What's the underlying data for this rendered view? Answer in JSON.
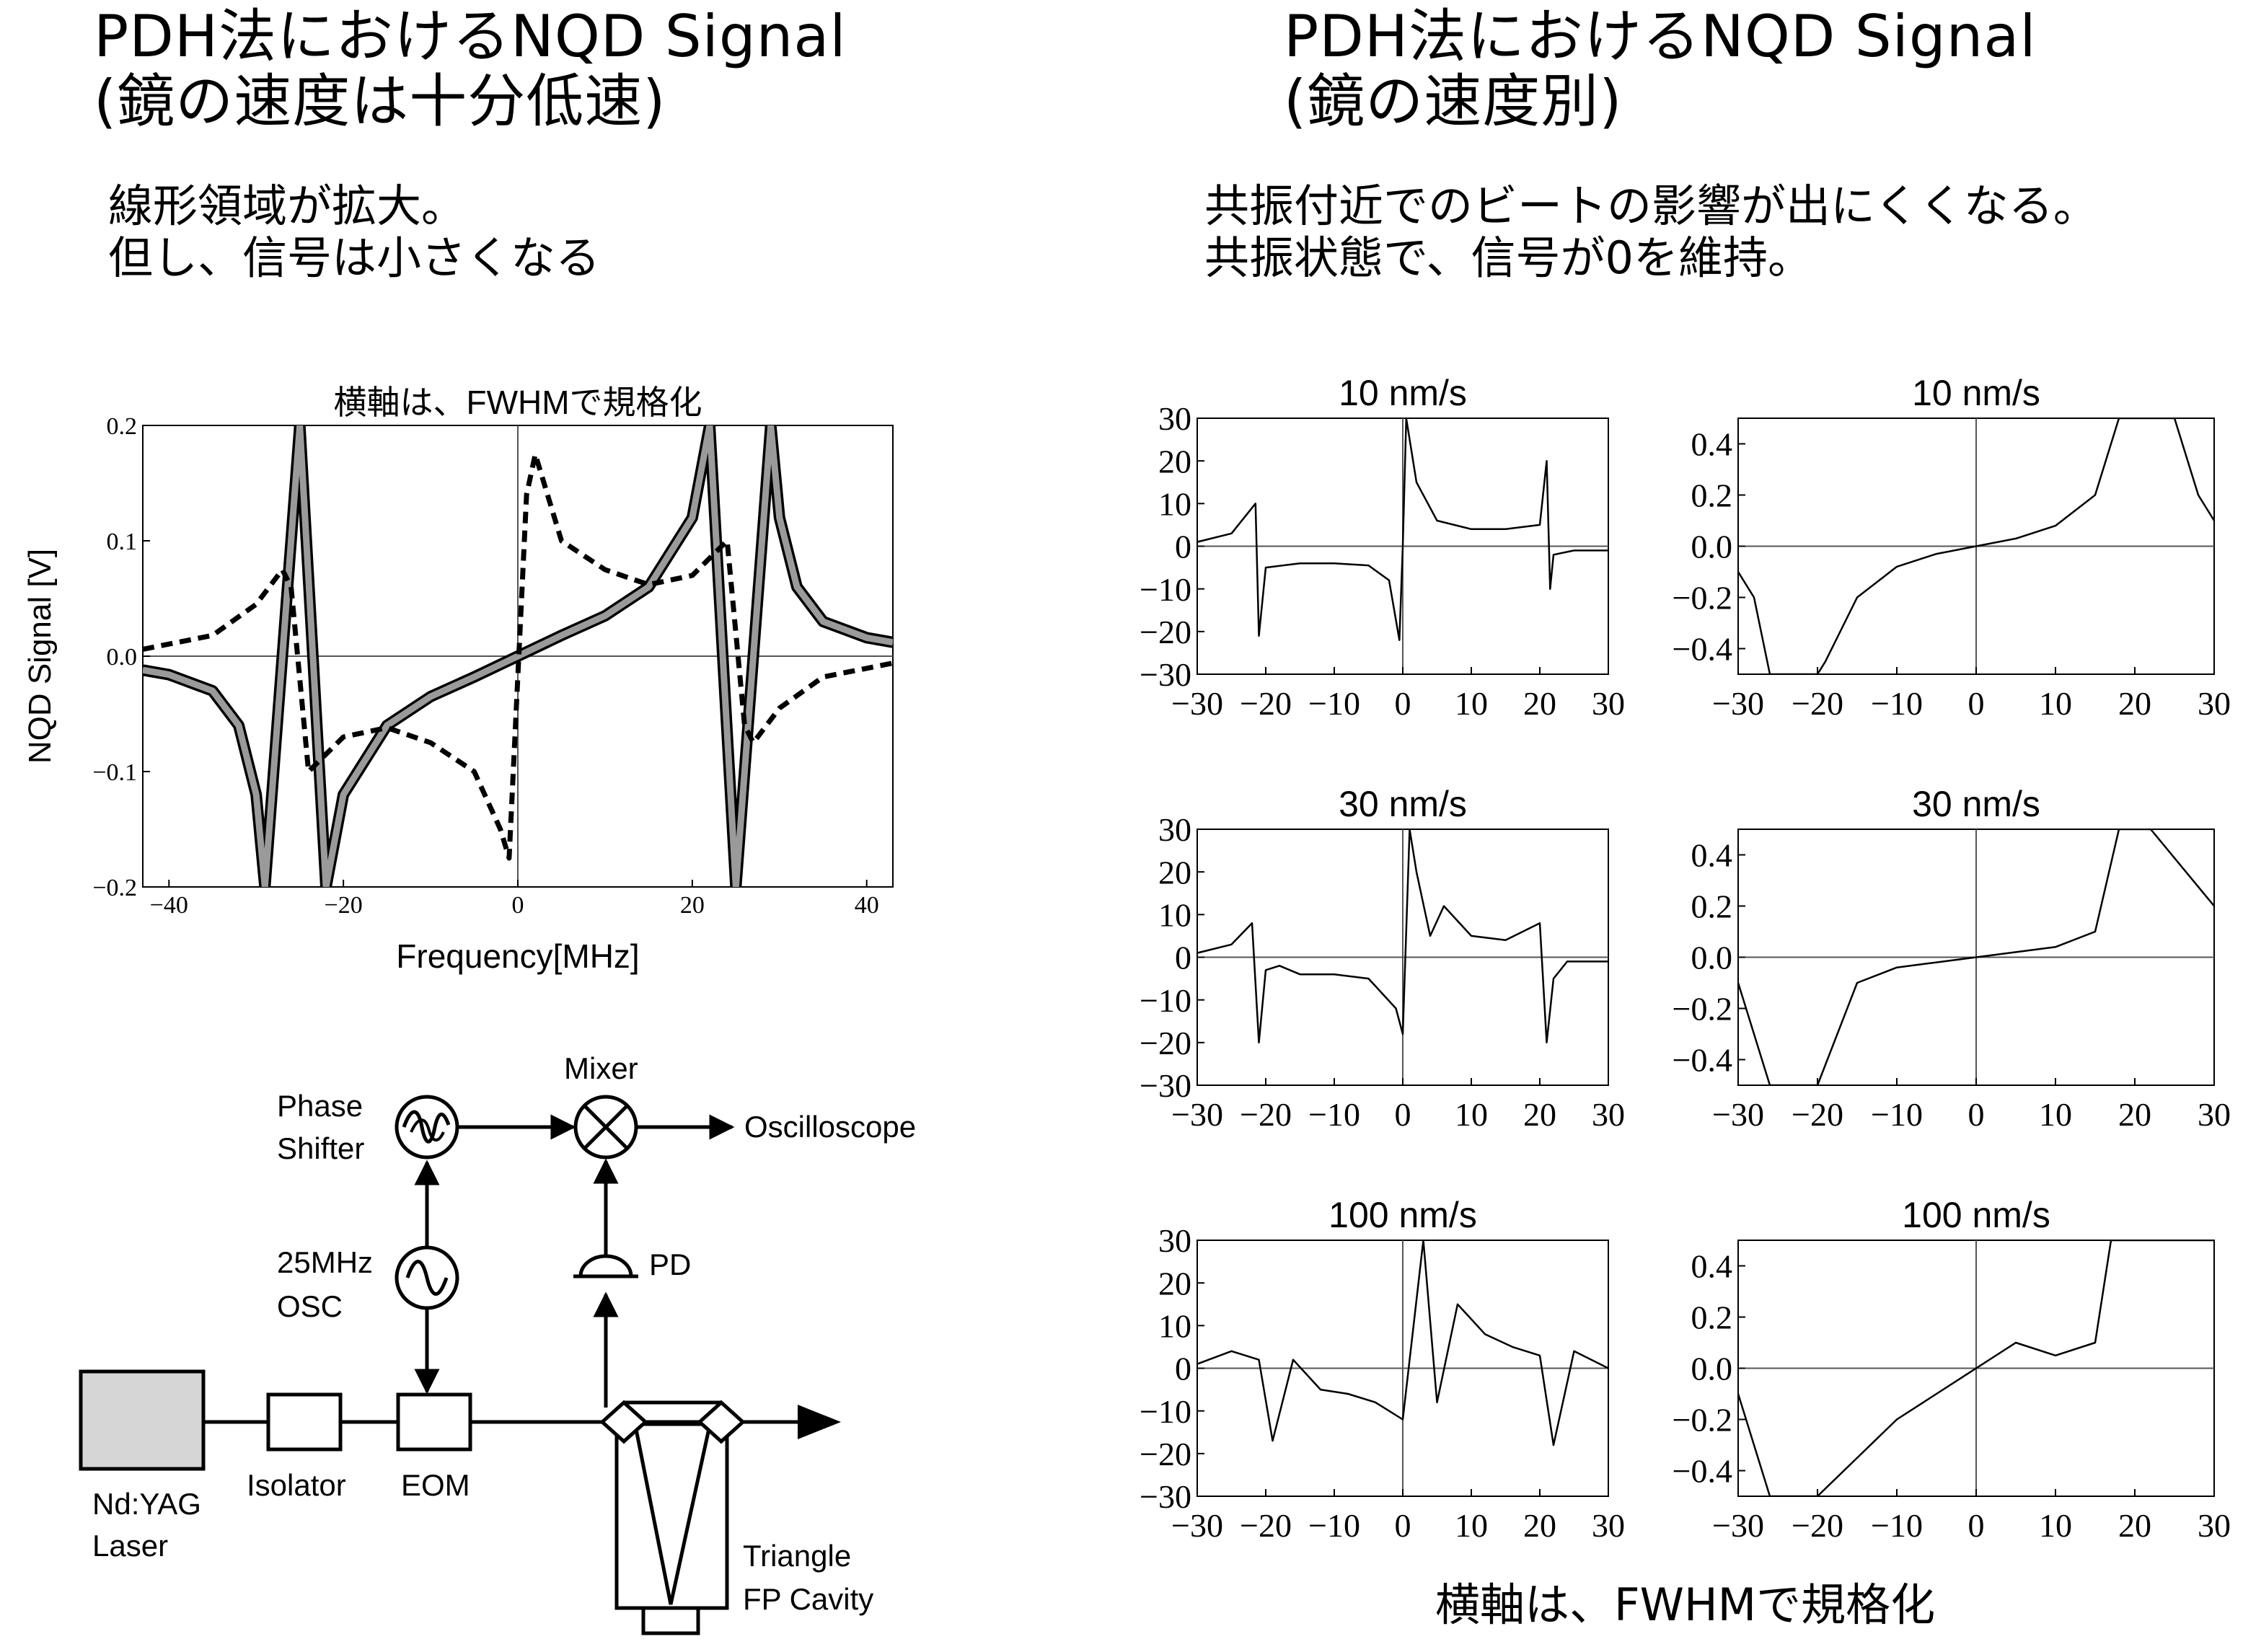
{
  "left": {
    "title_line1": "PDH法におけるNQD Signal",
    "title_line2": "(鏡の速度は十分低速)",
    "note_line1": "線形領域が拡大。",
    "note_line2": "但し、信号は小さくなる"
  },
  "right": {
    "title_line1": "PDH法におけるNQD Signal",
    "title_line2": "(鏡の速度別)",
    "note_line1": "共振付近でのビートの影響が出にくくなる。",
    "note_line2": "共振状態で、信号が0を維持。",
    "footer": "横軸は、FWHMで規格化"
  },
  "diagram": {
    "labels": {
      "phase_shifter_1": "Phase",
      "phase_shifter_2": "Shifter",
      "mixer": "Mixer",
      "oscilloscope": "Oscilloscope",
      "osc_1": "25MHz",
      "osc_2": "OSC",
      "pd": "PD",
      "laser_1": "Nd:YAG",
      "laser_2": "Laser",
      "isolator": "Isolator",
      "eom": "EOM",
      "cavity_1": "Triangle",
      "cavity_2": "FP Cavity"
    }
  },
  "chart_data": [
    {
      "type": "line",
      "title": "横軸は、FWHMで規格化",
      "xlabel": "Frequency[MHz]",
      "ylabel": "NQD Signal [V]",
      "xlim": [
        -43,
        43
      ],
      "ylim": [
        -0.2,
        0.2
      ],
      "xticks": [
        "−40",
        "−20",
        "0",
        "20",
        "40"
      ],
      "yticks": [
        "0.2",
        "0.1",
        "0.0",
        "−0.1",
        "−0.2"
      ],
      "series": [
        {
          "style": "solid thick gray-black",
          "x": [
            -43,
            -40,
            -35,
            -32,
            -30,
            -29,
            -25,
            -22,
            -20,
            -15,
            -10,
            -5,
            0,
            5,
            10,
            15,
            20,
            22,
            25,
            29,
            30,
            32,
            35,
            40,
            43
          ],
          "y": [
            -0.012,
            -0.016,
            -0.03,
            -0.06,
            -0.12,
            -0.2,
            0.2,
            -0.2,
            -0.12,
            -0.06,
            -0.035,
            -0.018,
            0.0,
            0.018,
            0.035,
            0.06,
            0.12,
            0.2,
            -0.2,
            0.2,
            0.12,
            0.06,
            0.03,
            0.016,
            0.012
          ]
        },
        {
          "style": "dashed",
          "x": [
            -43,
            -35,
            -30,
            -27,
            -26,
            -25,
            -24,
            -20,
            -15,
            -10,
            -5,
            -2,
            -1,
            1,
            2,
            5,
            10,
            15,
            20,
            24,
            25,
            26,
            27,
            30,
            35,
            43
          ],
          "y": [
            0.006,
            0.018,
            0.045,
            0.075,
            0.06,
            -0.02,
            -0.1,
            -0.07,
            -0.062,
            -0.075,
            -0.1,
            -0.15,
            -0.175,
            0.14,
            0.175,
            0.1,
            0.075,
            0.062,
            0.07,
            0.1,
            0.02,
            -0.06,
            -0.075,
            -0.045,
            -0.018,
            -0.006
          ]
        }
      ]
    },
    {
      "type": "line",
      "title": "10 nm/s",
      "xlim": [
        -30,
        30
      ],
      "ylim": [
        -30,
        30
      ],
      "xticks": [
        "−30",
        "−20",
        "−10",
        "0",
        "10",
        "20",
        "30"
      ],
      "yticks": [
        "30",
        "20",
        "10",
        "0",
        "−10",
        "−20",
        "−30"
      ],
      "series": [
        {
          "x": [
            -30,
            -25,
            -22,
            -21.5,
            -21,
            -20,
            -15,
            -10,
            -5,
            -2,
            -0.5,
            0,
            0.5,
            2,
            5,
            10,
            15,
            20,
            21,
            21.5,
            22,
            25,
            30
          ],
          "y": [
            1,
            3,
            9,
            10,
            -21,
            -5,
            -4,
            -4,
            -4.5,
            -8,
            -22,
            0,
            30,
            15,
            6,
            4,
            4,
            5,
            20,
            -10,
            -2,
            -1,
            -1
          ]
        }
      ]
    },
    {
      "type": "line",
      "title": "10 nm/s",
      "xlim": [
        -30,
        30
      ],
      "ylim": [
        -0.5,
        0.5
      ],
      "xticks": [
        "−30",
        "−20",
        "−10",
        "0",
        "10",
        "20",
        "30"
      ],
      "yticks": [
        "0.4",
        "0.2",
        "0.0",
        "−0.2",
        "−0.4"
      ],
      "series": [
        {
          "x": [
            -30,
            -28,
            -26,
            -20,
            -19,
            -15,
            -10,
            -5,
            0,
            5,
            10,
            15,
            18,
            22,
            25,
            28,
            30
          ],
          "y": [
            -0.1,
            -0.2,
            -0.5,
            -0.5,
            -0.45,
            -0.2,
            -0.08,
            -0.03,
            0.0,
            0.03,
            0.08,
            0.2,
            0.5,
            0.5,
            0.5,
            0.2,
            0.1
          ]
        }
      ]
    },
    {
      "type": "line",
      "title": "30 nm/s",
      "xlim": [
        -30,
        30
      ],
      "ylim": [
        -30,
        30
      ],
      "xticks": [
        "−30",
        "−20",
        "−10",
        "0",
        "10",
        "20",
        "30"
      ],
      "yticks": [
        "30",
        "20",
        "10",
        "0",
        "−10",
        "−20",
        "−30"
      ],
      "series": [
        {
          "x": [
            -30,
            -25,
            -22,
            -21,
            -20,
            -18,
            -15,
            -10,
            -5,
            -1,
            0,
            1,
            2,
            4,
            6,
            10,
            15,
            20,
            21,
            22,
            24,
            30
          ],
          "y": [
            1,
            3,
            8,
            -20,
            -3,
            -2,
            -4,
            -4,
            -5,
            -12,
            -18,
            30,
            20,
            5,
            12,
            5,
            4,
            8,
            -20,
            -5,
            -1,
            -1
          ]
        }
      ]
    },
    {
      "type": "line",
      "title": "30 nm/s",
      "xlim": [
        -30,
        30
      ],
      "ylim": [
        -0.5,
        0.5
      ],
      "xticks": [
        "−30",
        "−20",
        "−10",
        "0",
        "10",
        "20",
        "30"
      ],
      "yticks": [
        "0.4",
        "0.2",
        "0.0",
        "−0.2",
        "−0.4"
      ],
      "series": [
        {
          "x": [
            -30,
            -28,
            -26,
            -20,
            -15,
            -10,
            -5,
            0,
            5,
            10,
            15,
            18,
            22,
            30
          ],
          "y": [
            -0.1,
            -0.3,
            -0.5,
            -0.5,
            -0.1,
            -0.04,
            -0.02,
            0.0,
            0.02,
            0.04,
            0.1,
            0.5,
            0.5,
            0.2
          ]
        }
      ]
    },
    {
      "type": "line",
      "title": "100 nm/s",
      "xlim": [
        -30,
        30
      ],
      "ylim": [
        -30,
        30
      ],
      "xticks": [
        "−30",
        "−20",
        "−10",
        "0",
        "10",
        "20",
        "30"
      ],
      "yticks": [
        "30",
        "20",
        "10",
        "0",
        "−10",
        "−20",
        "−30"
      ],
      "series": [
        {
          "x": [
            -30,
            -25,
            -21,
            -19,
            -16,
            -12,
            -8,
            -4,
            0,
            3,
            5,
            8,
            12,
            16,
            20,
            22,
            25,
            30
          ],
          "y": [
            1,
            4,
            2,
            -17,
            2,
            -5,
            -6,
            -8,
            -12,
            30,
            -8,
            15,
            8,
            5,
            3,
            -18,
            4,
            0
          ]
        }
      ]
    },
    {
      "type": "line",
      "title": "100 nm/s",
      "xlim": [
        -30,
        30
      ],
      "ylim": [
        -0.5,
        0.5
      ],
      "xticks": [
        "−30",
        "−20",
        "−10",
        "0",
        "10",
        "20",
        "30"
      ],
      "yticks": [
        "0.4",
        "0.2",
        "0.0",
        "−0.2",
        "−0.4"
      ],
      "series": [
        {
          "x": [
            -30,
            -28,
            -26,
            -20,
            -10,
            -5,
            0,
            5,
            10,
            15,
            17,
            30
          ],
          "y": [
            -0.1,
            -0.3,
            -0.5,
            -0.5,
            -0.2,
            -0.1,
            0.0,
            0.1,
            0.05,
            0.1,
            0.5,
            0.5
          ]
        }
      ]
    }
  ]
}
